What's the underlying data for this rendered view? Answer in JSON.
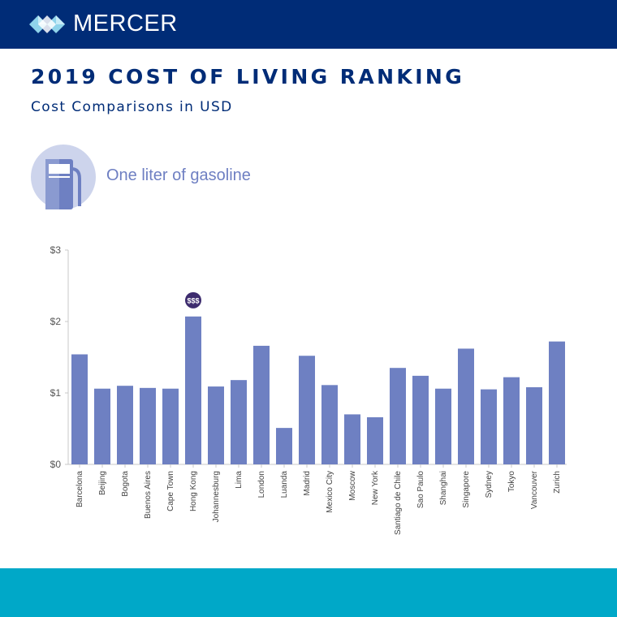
{
  "header": {
    "brand": "MERCER",
    "colors": {
      "navy": "#002c77",
      "teal": "#00a8c8"
    }
  },
  "title": "2019 COST OF LIVING RANKING",
  "subtitle": "Cost Comparisons in USD",
  "icon": "gas-pump-icon",
  "chart_label": "One liter of gasoline",
  "chart_data": {
    "type": "bar",
    "title": "One liter of gasoline",
    "categories": [
      "Barcelona",
      "Beijing",
      "Bogota",
      "Buenos Aires",
      "Cape Town",
      "Hong Kong",
      "Johannesburg",
      "Lima",
      "London",
      "Luanda",
      "Madrid",
      "Mexico City",
      "Moscow",
      "New York",
      "Santiago de Chile",
      "Sao Paulo",
      "Shanghai",
      "Singapore",
      "Sydney",
      "Tokyo",
      "Vancouver",
      "Zurich"
    ],
    "values": [
      1.54,
      1.06,
      1.1,
      1.07,
      1.06,
      2.07,
      1.09,
      1.18,
      1.66,
      0.51,
      1.52,
      1.11,
      0.7,
      0.66,
      1.35,
      1.24,
      1.06,
      1.62,
      1.05,
      1.22,
      1.08,
      1.72
    ],
    "ylim": [
      0,
      3
    ],
    "y_ticks": [
      0,
      1,
      2,
      3
    ],
    "y_tick_labels": [
      "$0",
      "$1",
      "$2",
      "$3"
    ],
    "xlabel": "",
    "ylabel": "",
    "grid": false,
    "bar_color": "#6e80c2",
    "annotation": {
      "category": "Hong Kong",
      "text": "$$$",
      "color": "#3d2c6e"
    }
  }
}
